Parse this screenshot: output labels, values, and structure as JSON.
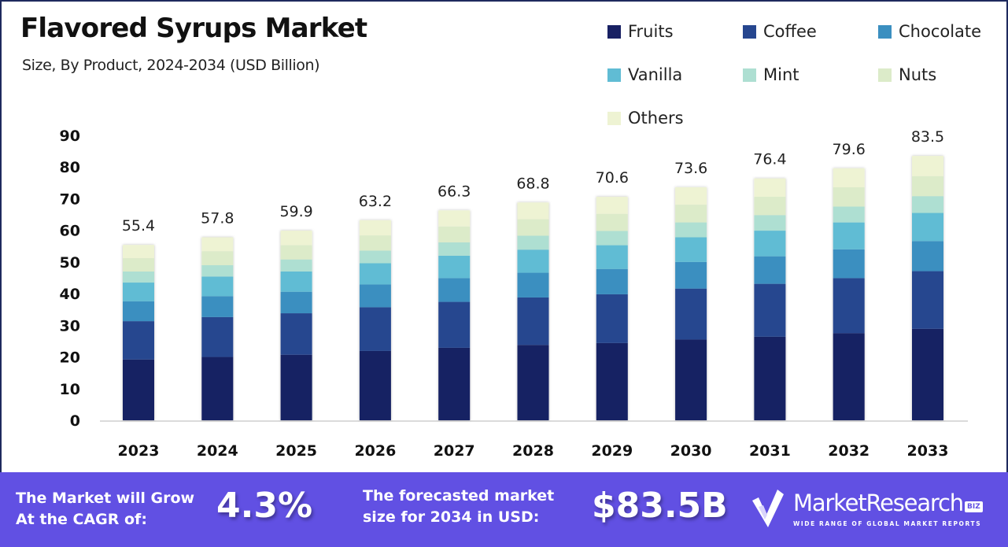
{
  "header": {
    "title": "Flavored Syrups Market",
    "subtitle": "Size, By Product, 2024-2034 (USD Billion)"
  },
  "footer": {
    "cagr_label_line1": "The Market will Grow",
    "cagr_label_line2": "At the CAGR of:",
    "cagr_value": "4.3%",
    "forecast_label_line1": "The forecasted market",
    "forecast_label_line2": "size for 2034 in USD:",
    "forecast_value": "$83.5B",
    "brand_name": "MarketResearch",
    "brand_badge": "BIZ",
    "brand_tagline": "WIDE RANGE OF GLOBAL MARKET REPORTS",
    "background_color": "#6150e3"
  },
  "chart_data": {
    "type": "bar",
    "stacked": true,
    "title": "Flavored Syrups Market",
    "subtitle": "Size, By Product, 2024-2034 (USD Billion)",
    "xlabel": "",
    "ylabel": "",
    "ylim": [
      0,
      90
    ],
    "yticks": [
      0,
      10,
      20,
      30,
      40,
      50,
      60,
      70,
      80,
      90
    ],
    "grid": false,
    "legend_position": "top-right",
    "categories": [
      "2023",
      "2024",
      "2025",
      "2026",
      "2027",
      "2028",
      "2029",
      "2030",
      "2031",
      "2032",
      "2033"
    ],
    "totals": [
      55.4,
      57.8,
      59.9,
      63.2,
      66.3,
      68.8,
      70.6,
      73.6,
      76.4,
      79.6,
      83.5
    ],
    "total_labels": [
      "55.4",
      "57.8",
      "59.9",
      "63.2",
      "66.3",
      "68.8",
      "70.6",
      "73.6",
      "76.4",
      "79.6",
      "83.5"
    ],
    "series": [
      {
        "name": "Fruits",
        "color": "#182063",
        "values": [
          19.2,
          20.0,
          20.7,
          21.9,
          22.9,
          23.8,
          24.4,
          25.5,
          26.4,
          27.5,
          28.9
        ]
      },
      {
        "name": "Coffee",
        "color": "#26468f",
        "values": [
          12.1,
          12.6,
          13.1,
          13.8,
          14.5,
          15.0,
          15.4,
          16.1,
          16.7,
          17.4,
          18.2
        ]
      },
      {
        "name": "Chocolate",
        "color": "#3b8fc0",
        "values": [
          6.3,
          6.6,
          6.8,
          7.2,
          7.5,
          7.8,
          8.0,
          8.4,
          8.7,
          9.1,
          9.5
        ]
      },
      {
        "name": "Vanilla",
        "color": "#60bcd4",
        "values": [
          5.9,
          6.2,
          6.4,
          6.7,
          7.1,
          7.3,
          7.5,
          7.8,
          8.1,
          8.5,
          8.9
        ]
      },
      {
        "name": "Mint",
        "color": "#aedfd2",
        "values": [
          3.5,
          3.6,
          3.8,
          4.0,
          4.2,
          4.4,
          4.5,
          4.7,
          4.9,
          5.0,
          5.3
        ]
      },
      {
        "name": "Nuts",
        "color": "#dcebc9",
        "values": [
          4.2,
          4.4,
          4.5,
          4.8,
          5.0,
          5.2,
          5.4,
          5.6,
          5.8,
          6.1,
          6.3
        ]
      },
      {
        "name": "Others",
        "color": "#eef3d3",
        "values": [
          4.2,
          4.4,
          4.6,
          4.8,
          5.1,
          5.3,
          5.4,
          5.5,
          5.8,
          6.0,
          6.4
        ]
      }
    ]
  }
}
